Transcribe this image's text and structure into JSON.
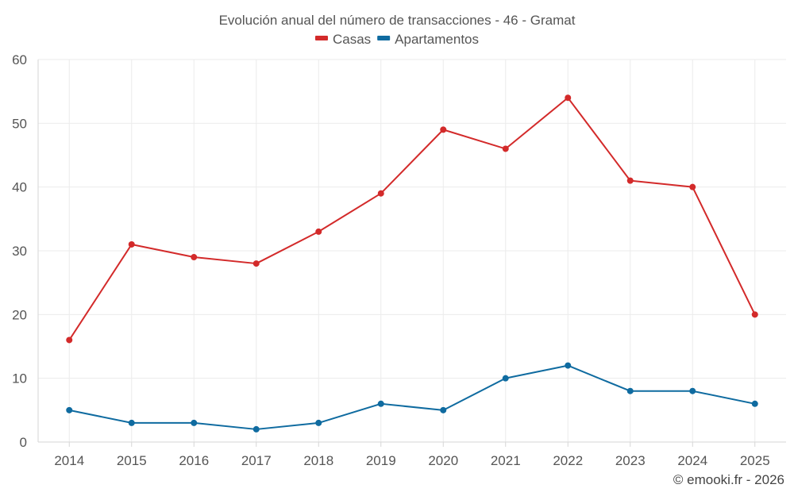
{
  "chart_data": {
    "type": "line",
    "title": "Evolución anual del número de transacciones - 46 - Gramat",
    "categories": [
      "2014",
      "2015",
      "2016",
      "2017",
      "2018",
      "2019",
      "2020",
      "2021",
      "2022",
      "2023",
      "2024",
      "2025"
    ],
    "series": [
      {
        "name": "Casas",
        "color": "#d32a2a",
        "values": [
          16,
          31,
          29,
          28,
          33,
          39,
          49,
          46,
          54,
          41,
          40,
          20
        ]
      },
      {
        "name": "Apartamentos",
        "color": "#0f6ba0",
        "values": [
          5,
          3,
          3,
          2,
          3,
          6,
          5,
          10,
          12,
          8,
          8,
          6
        ]
      }
    ],
    "yticks": [
      0,
      10,
      20,
      30,
      40,
      50,
      60
    ],
    "ylim": [
      0,
      60
    ],
    "grid": true,
    "legend_position": "top-center"
  },
  "credit": "© emooki.fr - 2026"
}
